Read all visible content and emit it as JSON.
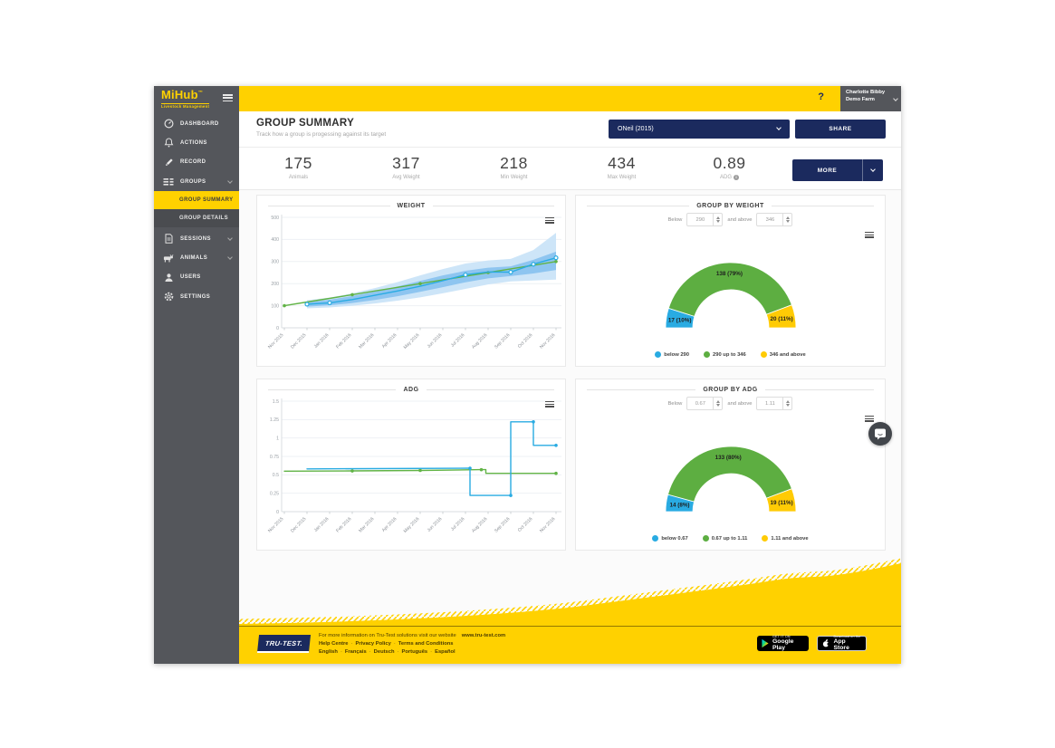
{
  "colors": {
    "brand_yellow": "#ffd100",
    "navy": "#1b2a5e",
    "sidebar_gray": "#54565b",
    "chart_green": "#61b346",
    "chart_blue": "#29abe2",
    "gauge_yellow": "#ffcb05",
    "band_outer": "#cde5f8",
    "band_inner": "#8ec5f0"
  },
  "header": {
    "help": "?",
    "user_name": "Charlotte Bibby",
    "user_farm": "Demo Farm"
  },
  "sidebar": {
    "logo_title": "MiHub",
    "logo_tm": "™",
    "logo_subtitle": "Livestock Management",
    "items": [
      {
        "label": "DASHBOARD"
      },
      {
        "label": "ACTIONS"
      },
      {
        "label": "RECORD"
      },
      {
        "label": "GROUPS"
      },
      {
        "label": "GROUP SUMMARY"
      },
      {
        "label": "GROUP DETAILS"
      },
      {
        "label": "SESSIONS"
      },
      {
        "label": "ANIMALS"
      },
      {
        "label": "USERS"
      },
      {
        "label": "SETTINGS"
      }
    ]
  },
  "summary": {
    "title": "GROUP SUMMARY",
    "subtitle": "Track how a group is progessing against its target",
    "group_selector_value": "ONeil (2015)",
    "share_label": "SHARE",
    "more_label": "MORE",
    "stats": [
      {
        "value": "175",
        "label": "Animals"
      },
      {
        "value": "317",
        "label": "Avg Weight"
      },
      {
        "value": "218",
        "label": "Min Weight"
      },
      {
        "value": "434",
        "label": "Max Weight"
      },
      {
        "value": "0.89",
        "label": "ADG",
        "info_icon": true
      }
    ]
  },
  "chart_data": [
    {
      "id": "weight",
      "type": "line",
      "title": "WEIGHT",
      "x_labels": [
        "Nov 2015",
        "Dec 2015",
        "Jan 2016",
        "Feb 2016",
        "Mar 2016",
        "Apr 2016",
        "May 2016",
        "Jun 2016",
        "Jul 2016",
        "Aug 2016",
        "Sep 2016",
        "Oct 2016",
        "Nov 2016"
      ],
      "ylim": [
        0,
        500
      ],
      "y_ticks": [
        0,
        100,
        200,
        300,
        400,
        500
      ],
      "grid": true,
      "bands": [
        {
          "name": "weight range outer",
          "color": "#cde5f8",
          "upper": [
            null,
            125,
            137,
            156,
            180,
            207,
            237,
            266,
            291,
            305,
            312,
            352,
            430
          ],
          "lower": [
            null,
            88,
            92,
            100,
            110,
            123,
            138,
            156,
            176,
            196,
            210,
            214,
            218
          ]
        },
        {
          "name": "weight range inner",
          "color": "#8ec5f0",
          "upper": [
            null,
            116,
            127,
            144,
            164,
            187,
            212,
            237,
            258,
            272,
            278,
            308,
            345
          ],
          "lower": [
            null,
            96,
            102,
            112,
            126,
            143,
            163,
            184,
            206,
            224,
            234,
            246,
            262
          ]
        }
      ],
      "series": [
        {
          "name": "target weight",
          "color": "#61b346",
          "marker_style": "solid",
          "values": [
            100,
            117,
            133,
            150,
            167,
            183,
            200,
            217,
            233,
            250,
            267,
            283,
            300
          ],
          "marker_idx": [
            0,
            3,
            6,
            9,
            12
          ]
        },
        {
          "name": "average weight",
          "color": "#29abe2",
          "marker_style": "open",
          "values": [
            null,
            107,
            113,
            128,
            147,
            167,
            188,
            213,
            240,
            253,
            252,
            288,
            317
          ],
          "marker_idx": [
            1,
            2,
            8,
            10,
            11,
            12
          ]
        }
      ]
    },
    {
      "id": "adg",
      "type": "line",
      "title": "ADG",
      "x_labels": [
        "Nov 2015",
        "Dec 2015",
        "Jan 2016",
        "Feb 2016",
        "Mar 2016",
        "Apr 2016",
        "May 2016",
        "Jun 2016",
        "Jul 2016",
        "Aug 2016",
        "Sep 2016",
        "Oct 2016",
        "Nov 2016"
      ],
      "ylim": [
        0,
        1.5
      ],
      "y_ticks": [
        0,
        0.25,
        0.5,
        0.75,
        1,
        1.25,
        1.5
      ],
      "grid": true,
      "series": [
        {
          "name": "target ADG",
          "color": "#61b346",
          "marker_style": "solid",
          "points": [
            [
              0,
              0.55
            ],
            [
              3,
              0.553
            ],
            [
              6,
              0.56
            ],
            [
              8.7,
              0.57
            ],
            [
              8.9,
              0.57
            ],
            [
              8.9,
              0.52
            ],
            [
              12,
              0.52
            ]
          ],
          "markers": [
            [
              3,
              0.553
            ],
            [
              6,
              0.56
            ],
            [
              8.7,
              0.57
            ],
            [
              12,
              0.52
            ]
          ]
        },
        {
          "name": "average ADG",
          "color": "#29abe2",
          "marker_style": "solid",
          "points": [
            [
              1,
              0.58
            ],
            [
              8.2,
              0.59
            ],
            [
              8.2,
              0.22
            ],
            [
              10,
              0.22
            ],
            [
              10,
              1.22
            ],
            [
              11,
              1.22
            ],
            [
              11,
              0.9
            ],
            [
              12,
              0.9
            ]
          ],
          "markers": [
            [
              8.2,
              0.59
            ],
            [
              10,
              0.22
            ],
            [
              11,
              1.22
            ],
            [
              12,
              0.9
            ]
          ]
        }
      ]
    },
    {
      "id": "group_by_weight",
      "type": "gauge",
      "title": "GROUP BY WEIGHT",
      "below_label": "Below",
      "below_value": "290",
      "above_label": "and above",
      "above_value": "346",
      "slices": [
        {
          "value": 17,
          "label": "17 (10%)",
          "color": "#29abe2",
          "legend": "below 290"
        },
        {
          "value": 138,
          "label": "138 (79%)",
          "color": "#5dae41",
          "legend": "290 up to 346"
        },
        {
          "value": 20,
          "label": "20 (11%)",
          "color": "#ffcb05",
          "legend": "346 and above"
        }
      ]
    },
    {
      "id": "group_by_adg",
      "type": "gauge",
      "title": "GROUP BY ADG",
      "below_label": "Below",
      "below_value": "0.67",
      "above_label": "and above",
      "above_value": "1.11",
      "slices": [
        {
          "value": 14,
          "label": "14 (8%)",
          "color": "#29abe2",
          "legend": "below 0.67"
        },
        {
          "value": 133,
          "label": "133 (80%)",
          "color": "#5dae41",
          "legend": "0.67 up to 1.11"
        },
        {
          "value": 19,
          "label": "19 (11%)",
          "color": "#ffcb05",
          "legend": "1.11 and above"
        }
      ]
    }
  ],
  "footer": {
    "logo_text": "TRU-TEST.",
    "info_text": "For more information on Tru-Test solutions visit our website",
    "website": "www.tru-test.com",
    "separator": "·",
    "links": [
      "Help Centre",
      "Privacy Policy",
      "Terms and Conditions"
    ],
    "languages": [
      "English",
      "Français",
      "Deutsch",
      "Português",
      "Español"
    ],
    "google_play": {
      "line1": "GET IT ON",
      "line2": "Google Play"
    },
    "app_store": {
      "line1": "Download on the",
      "line2": "App Store"
    }
  }
}
